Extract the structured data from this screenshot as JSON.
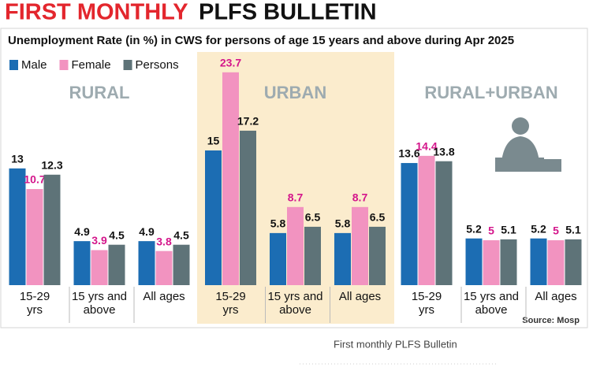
{
  "chart_data": {
    "type": "bar",
    "title": [
      "FIRST MONTHLY",
      "PLFS BULLETIN"
    ],
    "subtitle": "Unemployment Rate (in %) in CWS for persons of age 15 years and above during Apr 2025",
    "groups": [
      "RURAL",
      "URBAN",
      "RURAL+URBAN"
    ],
    "categories": [
      "15-29 yrs",
      "15 yrs and above",
      "All ages",
      "15-29 yrs",
      "15 yrs and above",
      "All ages",
      "15-29 yrs",
      "15 yrs and above",
      "All ages"
    ],
    "series": [
      {
        "name": "Male",
        "color": "#1c6db3",
        "values": [
          13,
          4.9,
          4.9,
          15,
          5.8,
          5.8,
          13.6,
          5.2,
          5.2
        ]
      },
      {
        "name": "Female",
        "color": "#f293c0",
        "values": [
          10.7,
          3.9,
          3.8,
          23.7,
          8.7,
          8.7,
          14.4,
          5,
          5
        ]
      },
      {
        "name": "Persons",
        "color": "#5e7378",
        "values": [
          12.3,
          4.5,
          4.5,
          17.2,
          6.5,
          6.5,
          13.8,
          5.1,
          5.1
        ]
      }
    ],
    "source": "Source: Mosp",
    "caption": "First monthly PLFS Bulletin"
  }
}
